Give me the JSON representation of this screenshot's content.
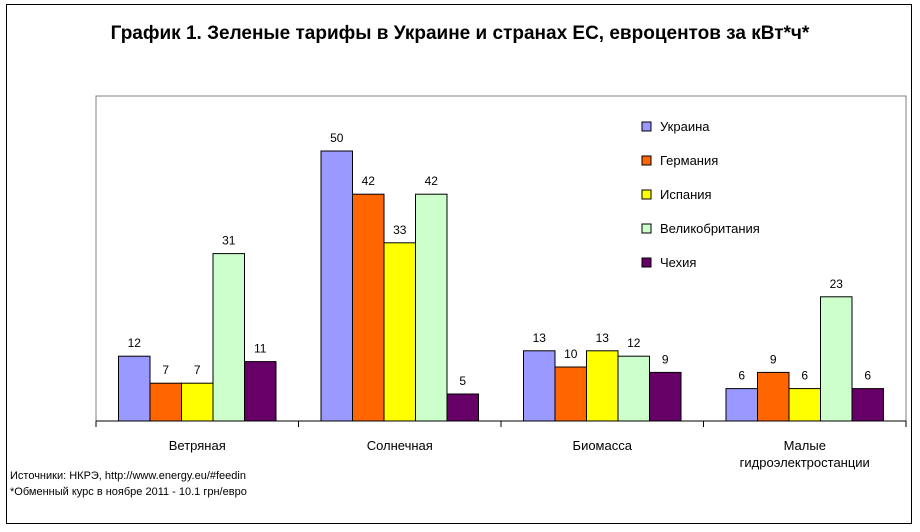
{
  "chart_data": {
    "type": "bar",
    "title": "График 1. Зеленые тарифы в Украине и странах ЕС, евроцентов за кВт*ч*",
    "categories": [
      "Ветряная",
      "Солнечная",
      "Биомасса",
      "Малые гидроэлектростанции"
    ],
    "series": [
      {
        "name": "Украина",
        "color": "#9999ff",
        "values": [
          12,
          50,
          13,
          6
        ]
      },
      {
        "name": "Германия",
        "color": "#ff6600",
        "values": [
          7,
          42,
          10,
          9
        ]
      },
      {
        "name": "Испания",
        "color": "#ffff00",
        "values": [
          7,
          33,
          13,
          6
        ]
      },
      {
        "name": "Великобритания",
        "color": "#ccffcc",
        "values": [
          31,
          42,
          12,
          23
        ]
      },
      {
        "name": "Чехия",
        "color": "#660066",
        "values": [
          11,
          5,
          9,
          6
        ]
      }
    ],
    "ylim": [
      0,
      50
    ],
    "grid": false,
    "legend": "top-right"
  },
  "notes": {
    "source": "Источники: НКРЭ, http://www.energy.eu/#feedin",
    "rate": "*Обменный курс в ноябре 2011 - 10.1 грн/евро"
  }
}
